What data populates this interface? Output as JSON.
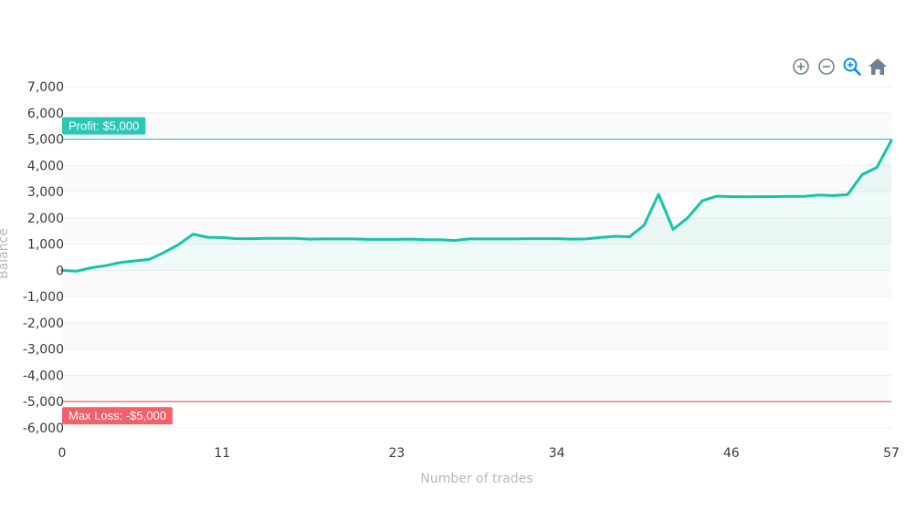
{
  "toolbar": {
    "icons": [
      "zoom-in-icon",
      "zoom-out-icon",
      "zoom-select-icon",
      "reset-home-icon"
    ],
    "colors": {
      "default": "#6e8192",
      "active": "#008ffb"
    }
  },
  "chart_data": {
    "type": "area",
    "title": "",
    "xlabel": "Number of trades",
    "ylabel": "Balance",
    "xlim": [
      0,
      57
    ],
    "ylim": [
      -6000,
      7000
    ],
    "x_ticks": [
      0,
      11,
      23,
      34,
      46,
      57
    ],
    "y_ticks": [
      7000,
      6000,
      5000,
      4000,
      3000,
      2000,
      1000,
      0,
      -1000,
      -2000,
      -3000,
      -4000,
      -5000,
      -6000
    ],
    "y_tick_labels": [
      "7,000",
      "6,000",
      "5,000",
      "4,000",
      "3,000",
      "2,000",
      "1,000",
      "0",
      "-1,000",
      "-2,000",
      "-3,000",
      "-4,000",
      "-5,000",
      "-6,000"
    ],
    "grid": true,
    "series": [
      {
        "color": "#16c4a8",
        "x": [
          0,
          1,
          2,
          3,
          4,
          5,
          6,
          7,
          8,
          9,
          10,
          11,
          12,
          13,
          14,
          15,
          16,
          17,
          18,
          19,
          20,
          21,
          22,
          23,
          24,
          25,
          26,
          27,
          28,
          29,
          30,
          31,
          32,
          33,
          34,
          35,
          36,
          37,
          38,
          39,
          40,
          41,
          42,
          43,
          44,
          45,
          46,
          47,
          48,
          49,
          50,
          51,
          52,
          53,
          54,
          55,
          56,
          57
        ],
        "values": [
          0,
          -30,
          100,
          180,
          300,
          360,
          420,
          680,
          980,
          1380,
          1260,
          1250,
          1210,
          1210,
          1220,
          1220,
          1220,
          1190,
          1200,
          1200,
          1200,
          1180,
          1180,
          1180,
          1190,
          1170,
          1170,
          1140,
          1200,
          1200,
          1200,
          1200,
          1210,
          1210,
          1210,
          1190,
          1200,
          1250,
          1300,
          1280,
          1720,
          2900,
          1560,
          2000,
          2650,
          2830,
          2810,
          2800,
          2810,
          2810,
          2820,
          2820,
          2870,
          2850,
          2890,
          3650,
          3920,
          4950
        ]
      }
    ],
    "annotations": [
      {
        "y": 5000,
        "label": "Profit: $5,000",
        "color": "#2ac7b7"
      },
      {
        "y": -5000,
        "label": "Max Loss: -$5,000",
        "color": "#f0616b"
      }
    ]
  }
}
